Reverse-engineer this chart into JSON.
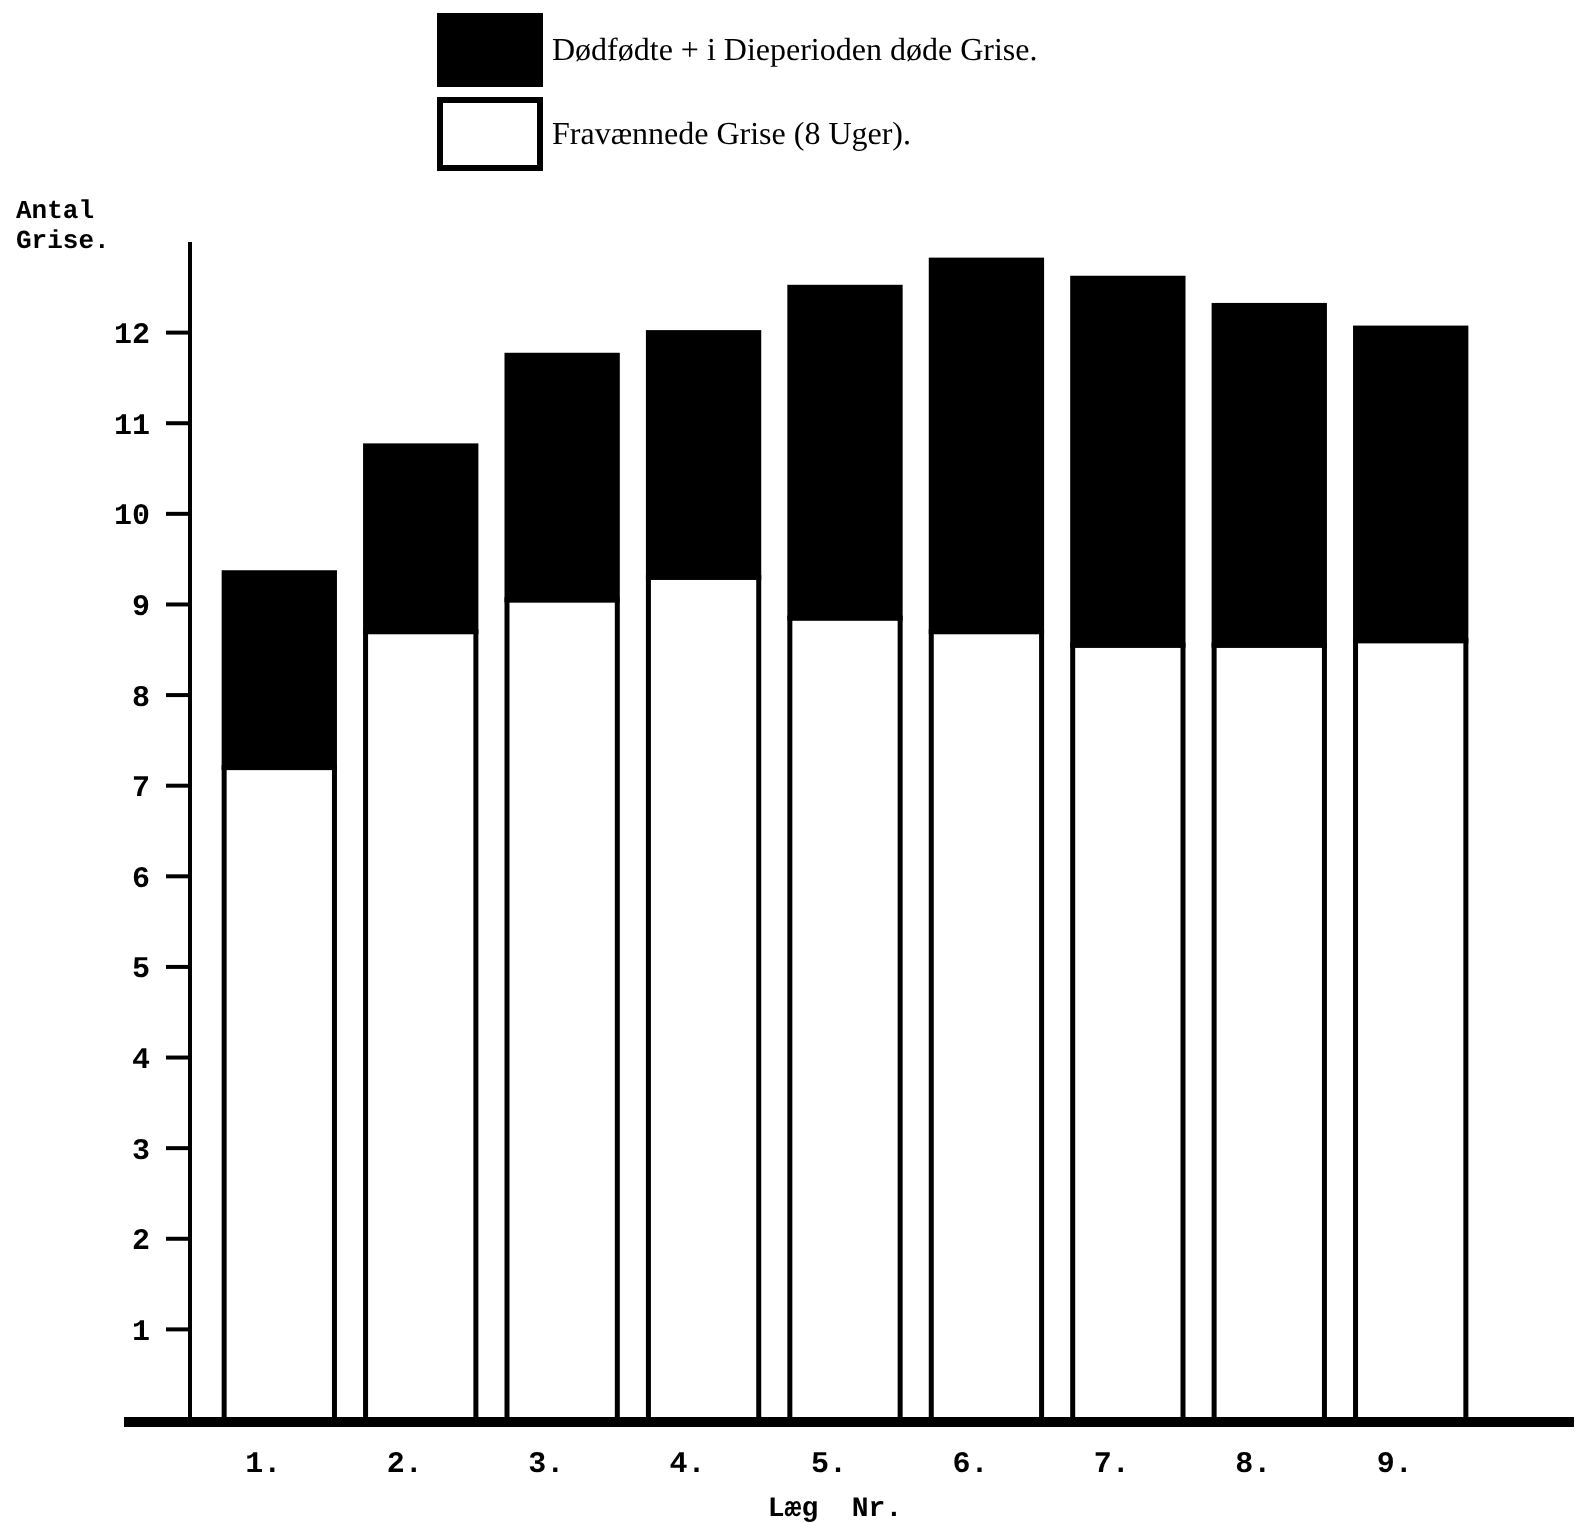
{
  "chart_data": {
    "type": "bar",
    "stacked": true,
    "xlabel": "Læg  Nr.",
    "ylabel": "Antal Grise.",
    "categories": [
      "1.",
      "2.",
      "3.",
      "4.",
      "5.",
      "6.",
      "7.",
      "8.",
      "9."
    ],
    "series": [
      {
        "name": "Fravænnede Grise (8 Uger).",
        "color": "#ffffff",
        "values": [
          7.2,
          8.7,
          9.05,
          9.3,
          8.85,
          8.7,
          8.55,
          8.55,
          8.6
        ]
      },
      {
        "name": "Dødfødte + i Dieperioden døde Grise.",
        "color": "#000000",
        "values": [
          2.15,
          2.05,
          2.7,
          2.7,
          3.65,
          4.1,
          4.05,
          3.75,
          3.45
        ]
      }
    ],
    "ylim": [
      0,
      13
    ],
    "yticks": [
      {
        "value": 1,
        "label": "1"
      },
      {
        "value": 2,
        "label": "2"
      },
      {
        "value": 3,
        "label": "3"
      },
      {
        "value": 4,
        "label": "4"
      },
      {
        "value": 5,
        "label": "5"
      },
      {
        "value": 6,
        "label": "6"
      },
      {
        "value": 7,
        "label": "7"
      },
      {
        "value": 8,
        "label": "8"
      },
      {
        "value": 9,
        "label": "9"
      },
      10,
      11,
      12
    ],
    "legend": "top",
    "grid": false
  }
}
